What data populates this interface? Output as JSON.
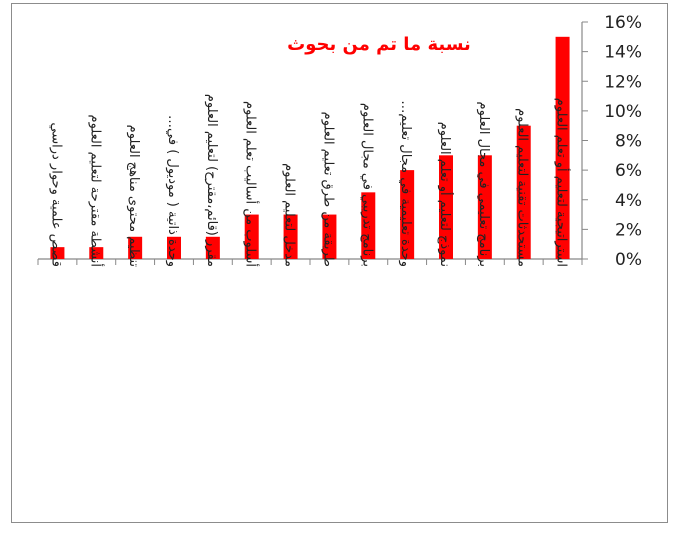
{
  "chart_data": {
    "type": "bar",
    "title": "نسبة ما تم من بحوث",
    "categories": [
      "قصص علمية وحوار دراسي",
      "أنشطة مقترحة لتعليم العلوم",
      "تنظيم محتوى مناهج العلوم",
      "وحدة ذاتية ( موديول ) في…",
      "مقرر (قائم،مقترح) لتعليم العلوم",
      "أسلوب من أساليب تعلم العلوم",
      "مدخل لتعليم العلوم",
      "طريقة من طرق تعليم العلوم",
      "برنامج تدريبي في مجال العلوم",
      "وحدة تعليمية في مجال تعليم…",
      "نموذج لتعليم أو تعلم العلوم",
      "برنامج تعليمي في مجال العلوم",
      "مستحدثات تقنية لتعليم العلوم",
      "استراتيجية لتعليم أو تعلم العلوم"
    ],
    "values": [
      0.8,
      0.8,
      1.5,
      1.5,
      1.5,
      3,
      3,
      3,
      4.5,
      6,
      7,
      7,
      9,
      15
    ],
    "yticks": [
      "0%",
      "2%",
      "4%",
      "6%",
      "8%",
      "10%",
      "12%",
      "14%",
      "16%"
    ],
    "ylim": [
      0,
      16
    ],
    "y_axis_side": "right",
    "legend": "none",
    "grid": false,
    "colors": {
      "bar": "#ff0000",
      "title": "#ff0000",
      "axis": "#888888"
    }
  }
}
